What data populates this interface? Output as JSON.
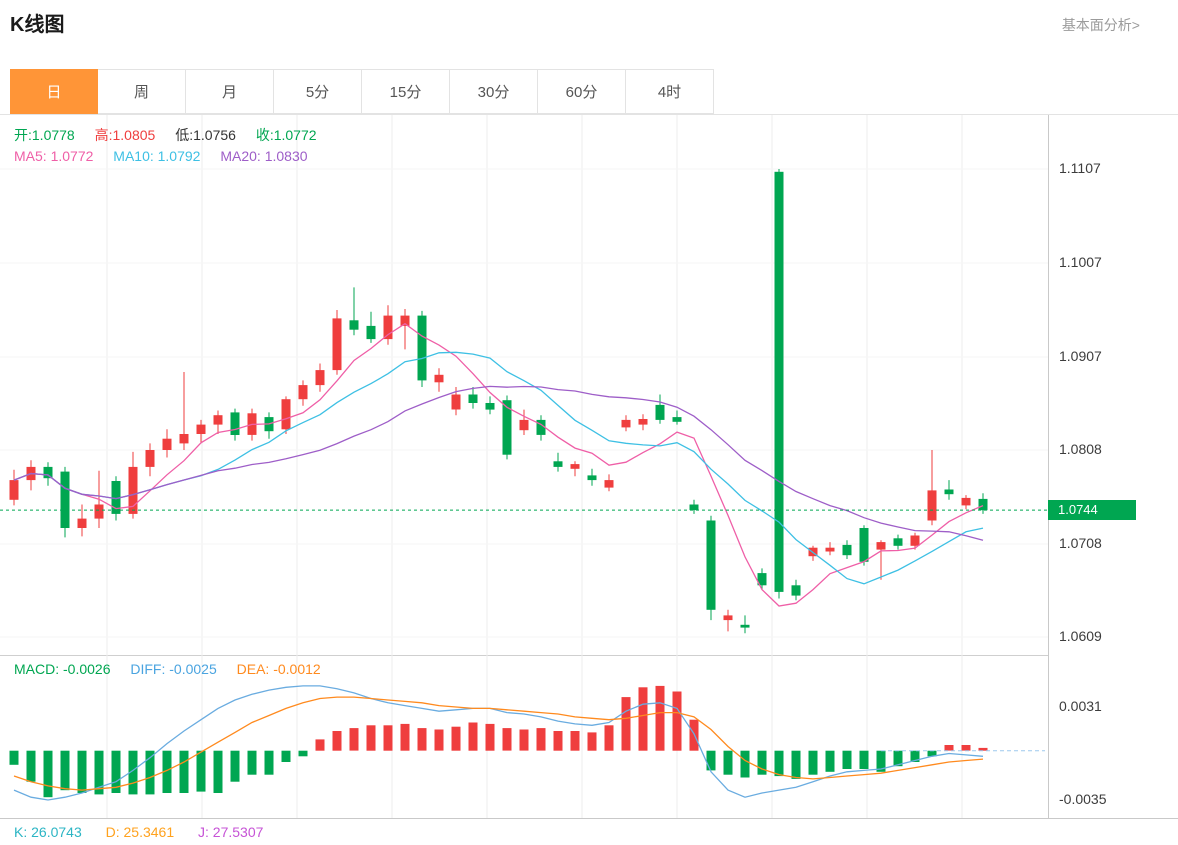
{
  "header": {
    "title": "K线图",
    "link_label": "基本面分析>"
  },
  "tabs": {
    "items": [
      "日",
      "周",
      "月",
      "5分",
      "15分",
      "30分",
      "60分",
      "4时"
    ],
    "active_index": 0
  },
  "main_chart": {
    "legend_ohlc": {
      "open": "开:1.0778",
      "high": "高:1.0805",
      "low": "低:1.0756",
      "close": "收:1.0772"
    },
    "legend_ma": {
      "ma5": "MA5: 1.0772",
      "ma10": "MA10: 1.0792",
      "ma20": "MA20: 1.0830"
    },
    "current_price": "1.0744",
    "price_ticks": [
      "1.1107",
      "1.1007",
      "1.0907",
      "1.0808",
      "1.0708",
      "1.0609"
    ]
  },
  "macd_panel": {
    "legend": {
      "macd": "MACD: -0.0026",
      "diff": "DIFF: -0.0025",
      "dea": "DEA: -0.0012"
    },
    "ticks": [
      "0.0031",
      "-0.0035"
    ]
  },
  "kdj_panel": {
    "k": "K: 26.0743",
    "d": "D: 25.3461",
    "j": "J: 27.5307"
  },
  "colors": {
    "up": "#ef3e3e",
    "down": "#00a651",
    "ma5": "#ef5fa7",
    "ma10": "#3ec0e4",
    "ma20": "#9e5ec8",
    "diff": "#6aace0",
    "dea": "#ff8a1e",
    "accent": "#ff9537",
    "price_tag_bg": "#00a651"
  },
  "chart_data": {
    "type": "candlestick",
    "title": "K线图 (daily)",
    "panels": [
      "price with MA5/MA10/MA20",
      "MACD histogram with DIFF/DEA"
    ],
    "legend_position": "top-left",
    "grid": true,
    "price_axis_ticks": [
      1.1107,
      1.1007,
      1.0907,
      1.0808,
      1.0708,
      1.0609
    ],
    "current_price": 1.0744,
    "ma_periods": [
      5,
      10,
      20
    ],
    "candles": [
      [
        1.0755,
        1.0787,
        1.0749,
        1.0776
      ],
      [
        1.0776,
        1.0797,
        1.0765,
        1.079
      ],
      [
        1.079,
        1.0795,
        1.077,
        1.0778
      ],
      [
        1.0785,
        1.079,
        1.0715,
        1.0725
      ],
      [
        1.0725,
        1.075,
        1.0716,
        1.0735
      ],
      [
        1.0735,
        1.0786,
        1.0725,
        1.075
      ],
      [
        1.0775,
        1.078,
        1.0733,
        1.074
      ],
      [
        1.074,
        1.0806,
        1.0735,
        1.079
      ],
      [
        1.079,
        1.0815,
        1.078,
        1.0808
      ],
      [
        1.0808,
        1.083,
        1.08,
        1.082
      ],
      [
        1.0815,
        1.0891,
        1.0808,
        1.0825
      ],
      [
        1.0825,
        1.084,
        1.0815,
        1.0835
      ],
      [
        1.0835,
        1.085,
        1.0825,
        1.0845
      ],
      [
        1.0848,
        1.0852,
        1.0818,
        1.0824
      ],
      [
        1.0824,
        1.0852,
        1.0818,
        1.0847
      ],
      [
        1.0843,
        1.0848,
        1.082,
        1.0828
      ],
      [
        1.083,
        1.0865,
        1.0825,
        1.0862
      ],
      [
        1.0862,
        1.0882,
        1.0855,
        1.0877
      ],
      [
        1.0877,
        1.09,
        1.087,
        1.0893
      ],
      [
        1.0893,
        1.0957,
        1.0888,
        1.0948
      ],
      [
        1.0946,
        1.0981,
        1.093,
        1.0936
      ],
      [
        1.094,
        1.0955,
        1.0922,
        1.0926
      ],
      [
        1.0926,
        1.0962,
        1.092,
        1.0951
      ],
      [
        1.094,
        1.0958,
        1.0915,
        1.0951
      ],
      [
        1.0951,
        1.0956,
        1.0875,
        1.0882
      ],
      [
        1.088,
        1.0895,
        1.087,
        1.0888
      ],
      [
        1.0851,
        1.0875,
        1.0845,
        1.0867
      ],
      [
        1.0867,
        1.0875,
        1.0852,
        1.0858
      ],
      [
        1.0858,
        1.0865,
        1.0846,
        1.0851
      ],
      [
        1.0861,
        1.0866,
        1.0798,
        1.0803
      ],
      [
        1.0829,
        1.0851,
        1.0824,
        1.084
      ],
      [
        1.084,
        1.0845,
        1.0818,
        1.0824
      ],
      [
        1.0796,
        1.0805,
        1.0785,
        1.079
      ],
      [
        1.0788,
        1.0796,
        1.078,
        1.0793
      ],
      [
        1.0781,
        1.0788,
        1.077,
        1.0776
      ],
      [
        1.0768,
        1.0782,
        1.0764,
        1.0776
      ],
      [
        1.0832,
        1.0845,
        1.0828,
        1.084
      ],
      [
        1.0835,
        1.0846,
        1.0829,
        1.0841
      ],
      [
        1.0856,
        1.0867,
        1.0836,
        1.084
      ],
      [
        1.0843,
        1.085,
        1.0835,
        1.0838
      ],
      [
        1.075,
        1.0755,
        1.074,
        1.0744
      ],
      [
        1.0733,
        1.0738,
        1.0627,
        1.0638
      ],
      [
        1.0627,
        1.0638,
        1.0615,
        1.0632
      ],
      [
        1.0622,
        1.0632,
        1.0613,
        1.0619
      ],
      [
        1.0677,
        1.0682,
        1.066,
        1.0664
      ],
      [
        1.1104,
        1.1107,
        1.065,
        1.0657
      ],
      [
        1.0664,
        1.067,
        1.0648,
        1.0653
      ],
      [
        1.0695,
        1.0706,
        1.069,
        1.0704
      ],
      [
        1.07,
        1.071,
        1.0696,
        1.0704
      ],
      [
        1.0707,
        1.0712,
        1.0692,
        1.0696
      ],
      [
        1.0725,
        1.0728,
        1.0685,
        1.0689
      ],
      [
        1.0702,
        1.0712,
        1.067,
        1.071
      ],
      [
        1.0714,
        1.0718,
        1.0702,
        1.0706
      ],
      [
        1.0706,
        1.072,
        1.0702,
        1.0717
      ],
      [
        1.0733,
        1.0808,
        1.0728,
        1.0765
      ],
      [
        1.0766,
        1.0776,
        1.0755,
        1.0761
      ],
      [
        1.0749,
        1.076,
        1.0745,
        1.0757
      ],
      [
        1.0756,
        1.0762,
        1.074,
        1.0744
      ]
    ],
    "macd": {
      "ticks": [
        0.0031,
        -0.0035
      ],
      "hist": [
        -0.001,
        -0.0022,
        -0.0033,
        -0.0028,
        -0.003,
        -0.0031,
        -0.003,
        -0.0031,
        -0.0031,
        -0.003,
        -0.003,
        -0.0029,
        -0.003,
        -0.0022,
        -0.0017,
        -0.0017,
        -0.0008,
        -0.0004,
        0.0008,
        0.0014,
        0.0016,
        0.0018,
        0.0018,
        0.0019,
        0.0016,
        0.0015,
        0.0017,
        0.002,
        0.0019,
        0.0016,
        0.0015,
        0.0016,
        0.0014,
        0.0014,
        0.0013,
        0.0018,
        0.0038,
        0.0045,
        0.0046,
        0.0042,
        0.0022,
        -0.0014,
        -0.0017,
        -0.0019,
        -0.0017,
        -0.0018,
        -0.002,
        -0.0017,
        -0.0015,
        -0.0013,
        -0.0013,
        -0.0015,
        -0.0011,
        -0.0008,
        -0.0004,
        0.0004,
        0.0004,
        0.0002
      ],
      "diff": [
        -0.0028,
        -0.0033,
        -0.0035,
        -0.0033,
        -0.003,
        -0.0026,
        -0.0022,
        -0.0014,
        -0.0005,
        0.0005,
        0.0014,
        0.0022,
        0.003,
        0.0036,
        0.004,
        0.0043,
        0.0045,
        0.0046,
        0.0046,
        0.0044,
        0.0041,
        0.0037,
        0.0034,
        0.0032,
        0.003,
        0.0028,
        0.0029,
        0.003,
        0.003,
        0.0027,
        0.0026,
        0.0024,
        0.0021,
        0.0019,
        0.0018,
        0.002,
        0.0028,
        0.0033,
        0.0034,
        0.003,
        0.0012,
        -0.0015,
        -0.0028,
        -0.0033,
        -0.003,
        -0.0028,
        -0.0026,
        -0.0022,
        -0.0018,
        -0.0015,
        -0.0014,
        -0.0013,
        -0.001,
        -0.0007,
        -0.0004,
        -0.0002,
        -0.0003,
        -0.0004
      ],
      "dea": [
        -0.0018,
        -0.0022,
        -0.0025,
        -0.0027,
        -0.0028,
        -0.0027,
        -0.0026,
        -0.0023,
        -0.0019,
        -0.0014,
        -0.0008,
        -0.0001,
        0.0006,
        0.0013,
        0.002,
        0.0025,
        0.003,
        0.0034,
        0.0037,
        0.0038,
        0.0038,
        0.0037,
        0.0036,
        0.0035,
        0.0034,
        0.0032,
        0.0031,
        0.003,
        0.003,
        0.0029,
        0.0028,
        0.0027,
        0.0026,
        0.0024,
        0.0023,
        0.0022,
        0.0023,
        0.0025,
        0.0027,
        0.0027,
        0.0024,
        0.0015,
        0.0003,
        -0.0007,
        -0.0013,
        -0.0017,
        -0.0019,
        -0.002,
        -0.0019,
        -0.0018,
        -0.0017,
        -0.0016,
        -0.0014,
        -0.0012,
        -0.001,
        -0.0008,
        -0.0007,
        -0.0006
      ]
    },
    "kdj": {
      "k": 26.0743,
      "d": 25.3461,
      "j": 27.5307
    }
  }
}
